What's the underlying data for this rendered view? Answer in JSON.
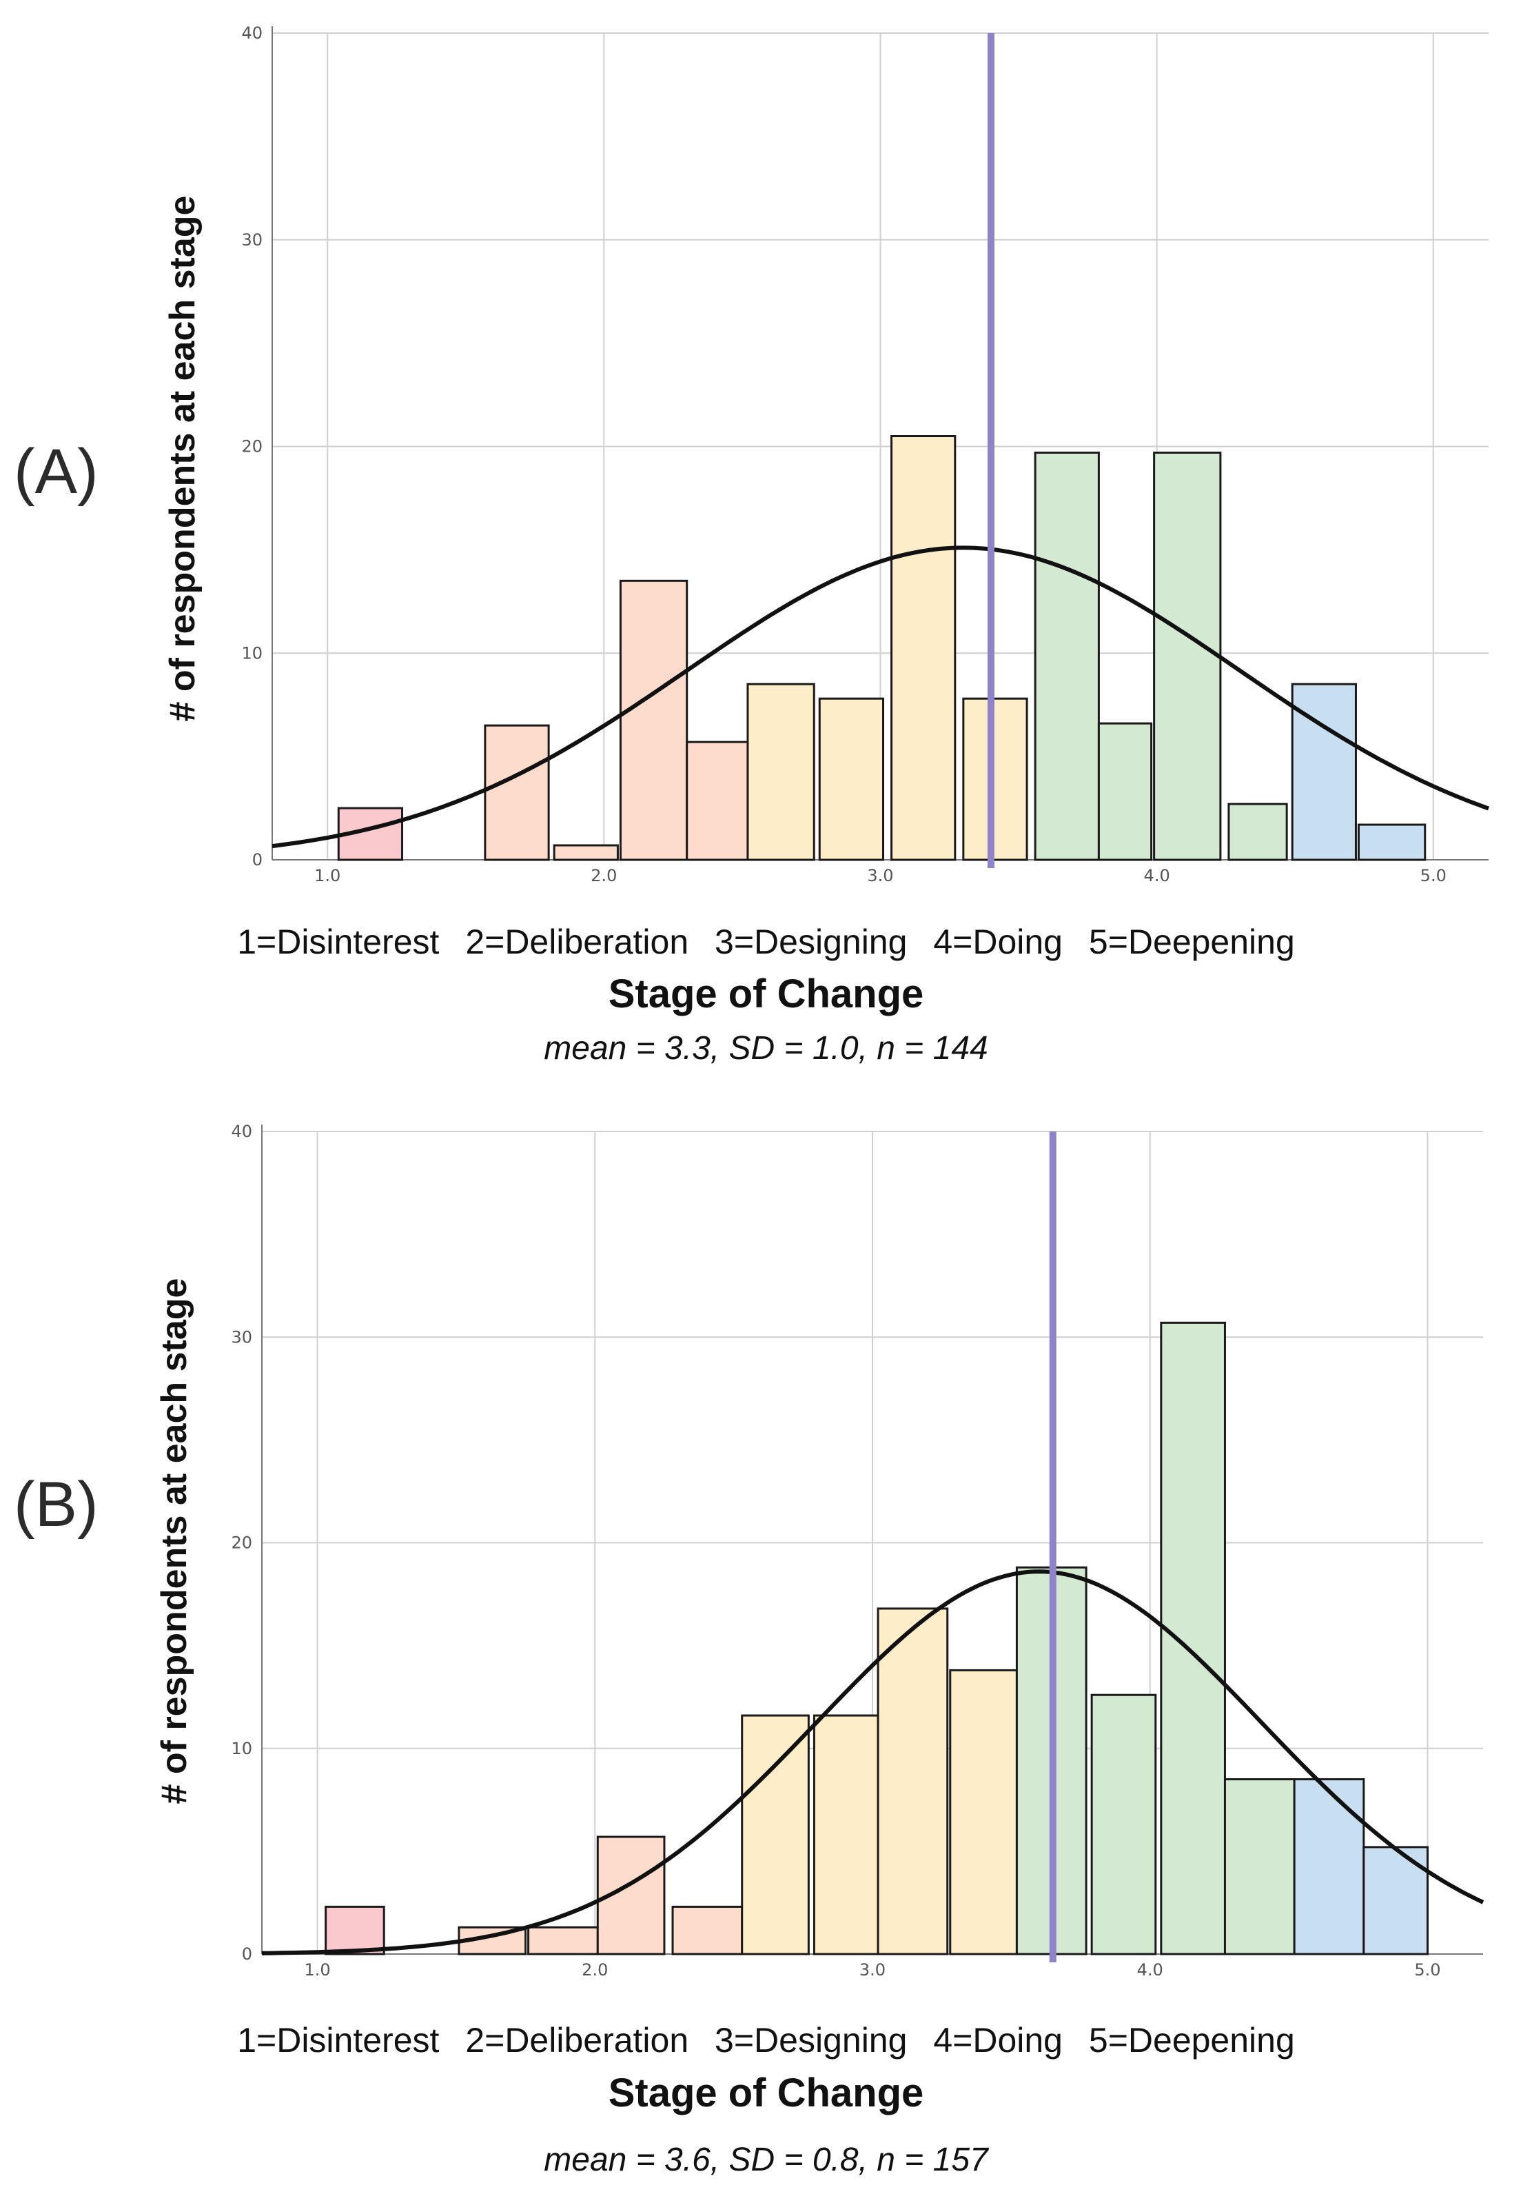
{
  "colors": {
    "disinterest": "#f9c9cd",
    "deliberation": "#fddccb",
    "designing": "#fdedc9",
    "doing": "#d3e9d2",
    "deepening": "#c8dff2",
    "mean_line": "#8f84c8",
    "curve": "#111111",
    "grid": "#d0d0d0"
  },
  "panels": [
    {
      "label": "(A)",
      "ylabel": "# of respondents at each stage",
      "xlabel": "Stage of Change",
      "stats": "mean = 3.3, SD = 1.0, n = 144",
      "stage_labels": [
        "1=Disinterest",
        "2=Deliberation",
        "3=Designing",
        "4=Doing",
        "5=Deepening"
      ]
    },
    {
      "label": "(B)",
      "ylabel": "# of respondents at each stage",
      "xlabel": "Stage of Change",
      "stats": "mean = 3.6, SD = 0.8, n = 157",
      "stage_labels": [
        "1=Disinterest",
        "2=Deliberation",
        "3=Designing",
        "4=Doing",
        "5=Deepening"
      ]
    }
  ],
  "chart_data": [
    {
      "type": "bar",
      "title": "(A)",
      "xlabel": "Stage of Change",
      "ylabel": "# of respondents at each stage",
      "xlim": [
        0.8,
        5.2
      ],
      "ylim": [
        0,
        40
      ],
      "xticks": [
        1.0,
        2.0,
        3.0,
        4.0,
        5.0
      ],
      "xtick_labels": [
        "1.0",
        "2.0",
        "3.0",
        "4.0",
        "5.0"
      ],
      "yticks": [
        0,
        10,
        20,
        30,
        40
      ],
      "ytick_labels": [
        "0",
        "10",
        "20",
        "30",
        "40"
      ],
      "grid": true,
      "bins": [
        {
          "x0": 1.04,
          "x1": 1.27,
          "value": 2.5,
          "stage": "disinterest"
        },
        {
          "x0": 1.57,
          "x1": 1.8,
          "value": 6.5,
          "stage": "deliberation"
        },
        {
          "x0": 1.82,
          "x1": 2.05,
          "value": 0.7,
          "stage": "deliberation"
        },
        {
          "x0": 2.06,
          "x1": 2.3,
          "value": 13.5,
          "stage": "deliberation"
        },
        {
          "x0": 2.3,
          "x1": 2.52,
          "value": 5.7,
          "stage": "deliberation"
        },
        {
          "x0": 2.52,
          "x1": 2.76,
          "value": 8.5,
          "stage": "designing"
        },
        {
          "x0": 2.78,
          "x1": 3.01,
          "value": 7.8,
          "stage": "designing"
        },
        {
          "x0": 3.04,
          "x1": 3.27,
          "value": 20.5,
          "stage": "designing"
        },
        {
          "x0": 3.3,
          "x1": 3.53,
          "value": 7.8,
          "stage": "designing"
        },
        {
          "x0": 3.56,
          "x1": 3.79,
          "value": 19.7,
          "stage": "doing"
        },
        {
          "x0": 3.79,
          "x1": 3.98,
          "value": 6.6,
          "stage": "doing"
        },
        {
          "x0": 3.99,
          "x1": 4.23,
          "value": 19.7,
          "stage": "doing"
        },
        {
          "x0": 4.26,
          "x1": 4.47,
          "value": 2.7,
          "stage": "doing"
        },
        {
          "x0": 4.49,
          "x1": 4.72,
          "value": 8.5,
          "stage": "deepening"
        },
        {
          "x0": 4.73,
          "x1": 4.97,
          "value": 1.7,
          "stage": "deepening"
        }
      ],
      "mean_line_x": 3.4,
      "normal_curve": {
        "mean": 3.3,
        "sd": 1.0,
        "peak": 15.1
      },
      "stats": "mean = 3.3, SD = 1.0, n = 144"
    },
    {
      "type": "bar",
      "title": "(B)",
      "xlabel": "Stage of Change",
      "ylabel": "# of respondents at each stage",
      "xlim": [
        0.8,
        5.2
      ],
      "ylim": [
        0,
        40
      ],
      "xticks": [
        1.0,
        2.0,
        3.0,
        4.0,
        5.0
      ],
      "xtick_labels": [
        "1.0",
        "2.0",
        "3.0",
        "4.0",
        "5.0"
      ],
      "yticks": [
        0,
        10,
        20,
        30,
        40
      ],
      "ytick_labels": [
        "0",
        "10",
        "20",
        "30",
        "40"
      ],
      "grid": true,
      "bins": [
        {
          "x0": 1.03,
          "x1": 1.24,
          "value": 2.3,
          "stage": "disinterest"
        },
        {
          "x0": 1.51,
          "x1": 1.75,
          "value": 1.3,
          "stage": "deliberation"
        },
        {
          "x0": 1.76,
          "x1": 2.01,
          "value": 1.3,
          "stage": "deliberation"
        },
        {
          "x0": 2.01,
          "x1": 2.25,
          "value": 5.7,
          "stage": "deliberation"
        },
        {
          "x0": 2.28,
          "x1": 2.53,
          "value": 2.3,
          "stage": "deliberation"
        },
        {
          "x0": 2.53,
          "x1": 2.77,
          "value": 11.6,
          "stage": "designing"
        },
        {
          "x0": 2.79,
          "x1": 3.02,
          "value": 11.6,
          "stage": "designing"
        },
        {
          "x0": 3.02,
          "x1": 3.27,
          "value": 16.8,
          "stage": "designing"
        },
        {
          "x0": 3.28,
          "x1": 3.52,
          "value": 13.8,
          "stage": "designing"
        },
        {
          "x0": 3.52,
          "x1": 3.77,
          "value": 18.8,
          "stage": "doing"
        },
        {
          "x0": 3.79,
          "x1": 4.02,
          "value": 12.6,
          "stage": "doing"
        },
        {
          "x0": 4.04,
          "x1": 4.27,
          "value": 30.7,
          "stage": "doing"
        },
        {
          "x0": 4.27,
          "x1": 4.52,
          "value": 8.5,
          "stage": "doing"
        },
        {
          "x0": 4.52,
          "x1": 4.77,
          "value": 8.5,
          "stage": "deepening"
        },
        {
          "x0": 4.77,
          "x1": 5.0,
          "value": 5.2,
          "stage": "deepening"
        }
      ],
      "mean_line_x": 3.65,
      "normal_curve": {
        "mean": 3.6,
        "sd": 0.8,
        "peak": 18.6
      },
      "stats": "mean = 3.6, SD = 0.8, n = 157"
    }
  ]
}
